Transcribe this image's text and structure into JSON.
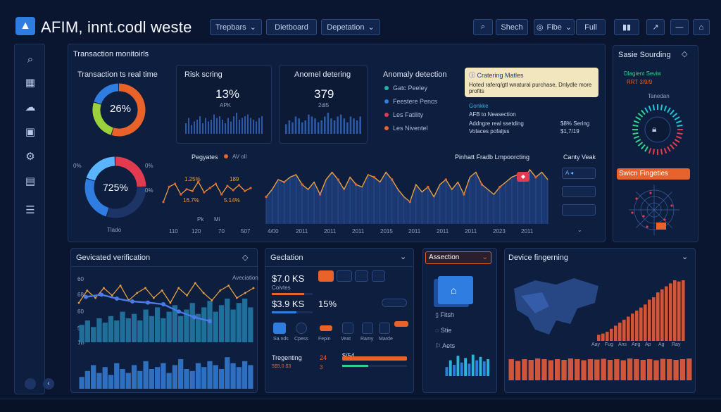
{
  "header": {
    "title": "AFIM, innt.codl weste",
    "buttons": [
      "Trepbars",
      "Dietboard",
      "Depetation"
    ],
    "search_label": "Shech",
    "filter_label": "Fibe",
    "full_label": "Full",
    "colors": {
      "bg": "#0a1630",
      "accent": "#e8622a",
      "cyan": "#22c3d6",
      "blue": "#2f7de1"
    }
  },
  "sidebar": {
    "icons": [
      "search-icon",
      "building-icon",
      "cloud-icon",
      "calendar-icon",
      "settings-icon",
      "document-icon",
      "menu-icon"
    ]
  },
  "monitor": {
    "title": "Transaction monitoirls",
    "realtime": {
      "title": "Transaction ts real time",
      "percent": "26%",
      "segments": [
        0.55,
        0.25,
        0.2
      ]
    },
    "risk": {
      "title": "Risk scring",
      "value": "13%",
      "sub": "APK",
      "bars": [
        6,
        9,
        5,
        7,
        8,
        10,
        6,
        9,
        7,
        8,
        11,
        9,
        10,
        8,
        6,
        9,
        7,
        10,
        12,
        8,
        9,
        10,
        11,
        9,
        8,
        7,
        9,
        10
      ]
    },
    "anomaly_detecting": {
      "title": "Anomel detering",
      "value": "379",
      "sub": "2di5",
      "bars": [
        5,
        7,
        6,
        9,
        8,
        6,
        7,
        10,
        9,
        8,
        6,
        7,
        9,
        11,
        8,
        7,
        9,
        10,
        8,
        6,
        9,
        8,
        7,
        9
      ]
    },
    "anomaly_detection": {
      "title": "Anomaly detection",
      "items": [
        {
          "label": "Gatc Peeley",
          "color": "#21b5a6"
        },
        {
          "label": "Feestere Pencs",
          "color": "#2f7de1"
        },
        {
          "label": "Les Fatility",
          "color": "#e23b4f"
        },
        {
          "label": "Les Niventel",
          "color": "#e8622a"
        }
      ]
    },
    "callout": {
      "title": "Cratering Matles",
      "text": "Hoted raferq/gtl wnatural purchase, Dnlydle more profits"
    },
    "notes": {
      "a": "Gonkke",
      "b": "AFB to Neasection",
      "rows": [
        {
          "label": "Addngre real ssetding",
          "value": "$8% Sering"
        },
        {
          "label": "Volaces pofaljss",
          "value": "$1,7/19"
        }
      ]
    },
    "donut2": {
      "value": "725%",
      "label": "Tlado",
      "ticks": [
        "0%",
        "0%",
        "0%"
      ]
    },
    "pagates": {
      "title": "Pegyates",
      "legend": [
        "AV",
        "oll"
      ],
      "labels": [
        "1.25%",
        "189",
        "16.7%",
        "5.14%"
      ],
      "xlabels": [
        "110",
        "120",
        "70",
        "507"
      ],
      "marks": [
        "Pk",
        "Mi"
      ],
      "points": [
        0.78,
        0.42,
        0.35,
        0.6,
        0.48,
        0.52,
        0.3,
        0.55,
        0.45,
        0.35,
        0.6,
        0.4,
        0.5,
        0.38,
        0.52,
        0.45
      ]
    },
    "trend": {
      "title": "Pinhatt Fradb Lmpoorcting",
      "xlabels": [
        "4/00",
        "2011",
        "2011",
        "2011",
        "2015",
        "2011",
        "2011",
        "2011",
        "2023",
        "2011"
      ],
      "values": [
        0.55,
        0.7,
        0.9,
        0.85,
        0.95,
        1.0,
        0.8,
        0.7,
        0.85,
        0.6,
        0.9,
        1.05,
        0.9,
        0.7,
        0.95,
        0.8,
        0.75,
        1.0,
        0.95,
        0.85,
        1.05,
        0.9,
        0.7,
        0.55,
        0.45,
        0.8,
        0.65,
        0.75,
        0.55,
        0.8,
        0.9,
        0.7,
        0.85,
        0.6,
        0.95,
        1.05,
        0.8,
        0.7,
        0.6,
        0.75,
        0.85,
        0.95,
        1.0,
        0.9,
        1.1,
        0.95,
        1.05,
        0.9
      ]
    },
    "canty": {
      "title": "Canty Veak",
      "btn": "A",
      "rows": [
        "",
        "",
        ""
      ]
    }
  },
  "right_panel": {
    "title": "Sasie Sourding",
    "subtitle": "Dlagient Seviw",
    "sub2": "RRT 3/9/9",
    "gauge_label": "Tanedan",
    "orange_label": "Swicn Fingeties"
  },
  "geo_verification": {
    "title": "Gevicated verification",
    "y_labels": [
      "60",
      "68",
      "60",
      "50",
      "1B"
    ],
    "legend": "Aveciation",
    "bars": [
      0.4,
      0.5,
      0.35,
      0.55,
      0.45,
      0.6,
      0.5,
      0.7,
      0.55,
      0.65,
      0.5,
      0.75,
      0.6,
      0.8,
      0.55,
      0.7,
      0.85,
      0.6,
      0.75,
      0.9,
      0.65,
      0.8,
      0.95,
      0.7,
      0.85,
      1.0,
      0.75,
      0.9,
      1.0,
      0.8
    ],
    "bars2": [
      0.3,
      0.45,
      0.6,
      0.4,
      0.55,
      0.35,
      0.65,
      0.5,
      0.4,
      0.6,
      0.45,
      0.7,
      0.5,
      0.55,
      0.65,
      0.4,
      0.6,
      0.75,
      0.5,
      0.45,
      0.65,
      0.55,
      0.7,
      0.6,
      0.5,
      0.8,
      0.65,
      0.55,
      0.7,
      0.6
    ],
    "line": [
      0.6,
      0.35,
      0.5,
      0.3,
      0.45,
      0.25,
      0.55,
      0.4,
      0.3,
      0.5,
      0.35,
      0.6,
      0.3,
      0.45,
      0.2,
      0.4,
      0.55,
      0.35,
      0.25,
      0.5,
      0.4,
      0.3
    ],
    "path2": [
      0.42,
      0.38,
      0.45,
      0.5,
      0.52,
      0.55,
      0.68,
      0.78,
      0.85
    ]
  },
  "geolocation": {
    "title": "Geclation",
    "v1": "$7.0 KS",
    "v1sub": "Coivtes",
    "v2": "$3.9 KS",
    "v2pct": "15%",
    "row_labels": [
      "Sa.nds",
      "Cpess",
      "Fepin",
      "Veat",
      "Ramy",
      "Marde"
    ],
    "footer_label": "Tregenting",
    "footer_vals": [
      "24",
      "$/54"
    ],
    "footer_sub": [
      "5$9.0 $3",
      "3"
    ]
  },
  "assection": {
    "title": "Assection",
    "items": [
      "Fitsh",
      "Stie",
      "Aets"
    ],
    "bars": [
      0.4,
      0.7,
      0.5,
      0.9,
      0.6,
      0.8,
      0.55,
      0.95,
      0.7,
      0.85,
      0.65,
      0.75
    ]
  },
  "device": {
    "title": "Device fingerning",
    "bars": [
      0.1,
      0.12,
      0.15,
      0.2,
      0.25,
      0.3,
      0.35,
      0.4,
      0.45,
      0.5,
      0.55,
      0.6,
      0.68,
      0.72,
      0.8,
      0.85,
      0.9,
      0.95,
      1.0,
      0.98,
      1.0
    ],
    "xlabels": [
      "Aay",
      "Fug",
      "Ans",
      "Ang",
      "Ap",
      "Ag",
      "Ray"
    ],
    "bottom_bars": [
      0.6,
      0.55,
      0.6,
      0.58,
      0.62,
      0.6,
      0.57,
      0.6,
      0.58,
      0.62,
      0.6,
      0.57,
      0.6,
      0.59,
      0.61,
      0.58,
      0.6,
      0.57,
      0.62,
      0.6,
      0.58,
      0.6,
      0.57,
      0.61,
      0.6,
      0.58,
      0.6,
      0.62
    ]
  }
}
